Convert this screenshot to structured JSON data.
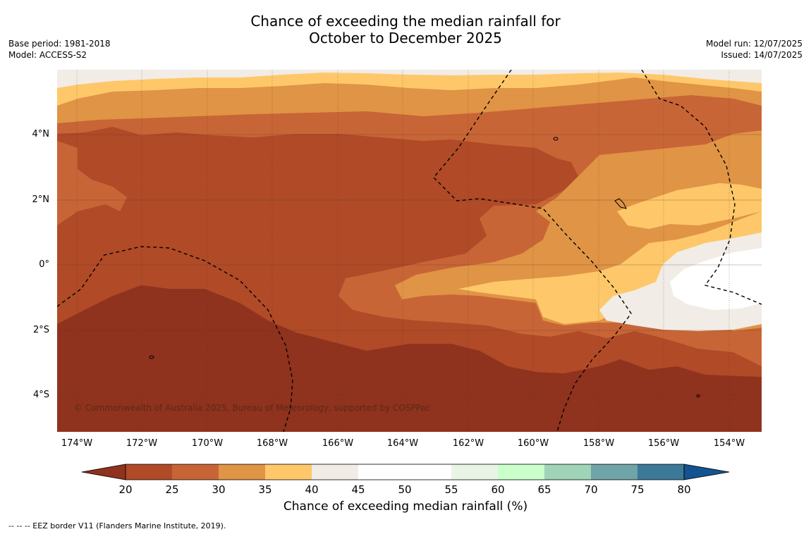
{
  "title": {
    "line1": "Chance of exceeding the median rainfall for",
    "line2": "October to December 2025"
  },
  "meta_left": {
    "base_period": "Base period: 1981-2018",
    "model": "Model: ACCESS-S2"
  },
  "meta_right": {
    "model_run": "Model run: 12/07/2025",
    "issued": "Issued: 14/07/2025"
  },
  "map": {
    "copyright": "© Commonwealth of Australia 2025, Bureau of Meteorology, supported by COSPPac",
    "lat_labels": [
      "4°N",
      "2°N",
      "0°",
      "2°S",
      "4°S"
    ],
    "lon_labels": [
      "174°W",
      "172°W",
      "170°W",
      "168°W",
      "166°W",
      "164°W",
      "162°W",
      "160°W",
      "158°W",
      "156°W",
      "154°W"
    ]
  },
  "colorbar": {
    "title": "Chance of exceeding median rainfall (%)",
    "ticks": [
      "20",
      "25",
      "30",
      "35",
      "40",
      "45",
      "50",
      "55",
      "60",
      "65",
      "70",
      "75",
      "80"
    ],
    "colors": {
      "below_20": "#8f321e",
      "20_25": "#b04a27",
      "25_30": "#c86536",
      "30_35": "#e09445",
      "35_40": "#fec86a",
      "40_45": "#f1ece6",
      "45_50": "#ffffff",
      "50_55": "#ffffff",
      "55_60": "#eaf4e6",
      "60_65": "#caffcc",
      "65_70": "#a0d4b8",
      "70_75": "#6fa4a8",
      "75_80": "#3c7898",
      "above_80": "#135490"
    }
  },
  "footnote": "--  --  -- EEZ border V11 (Flanders Marine Institute, 2019)."
}
